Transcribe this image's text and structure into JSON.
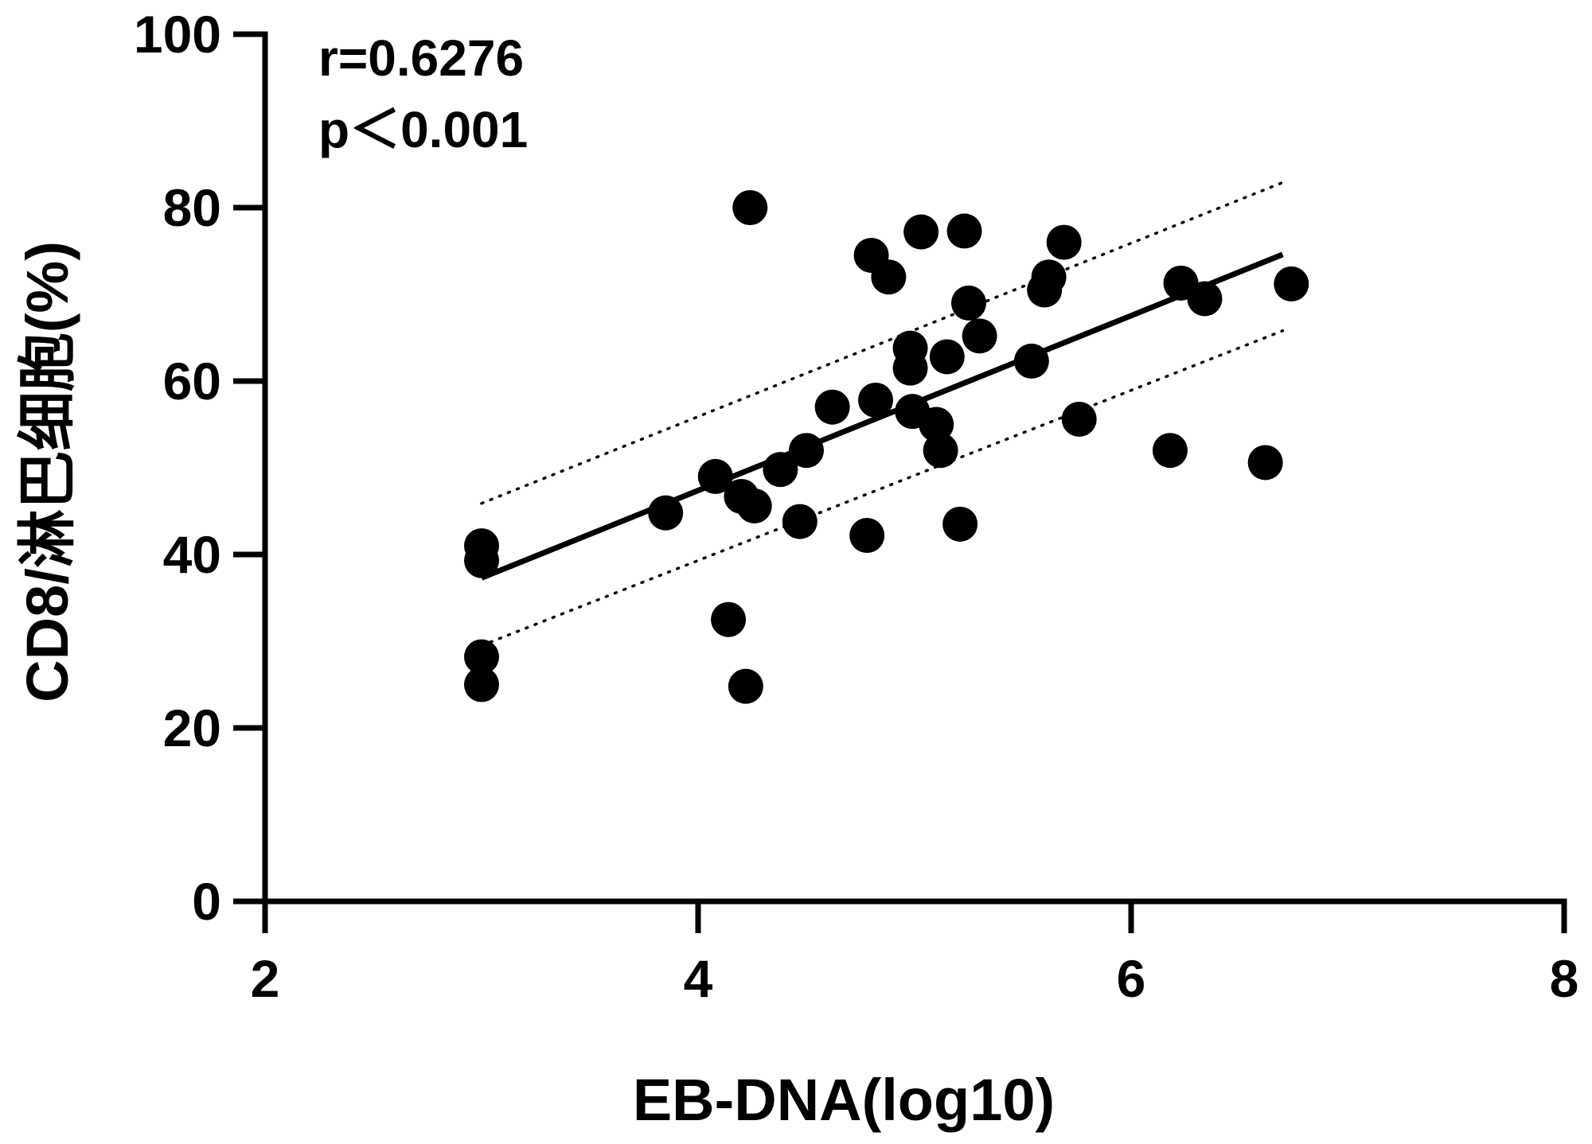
{
  "chart_data": {
    "type": "scatter",
    "title": "",
    "xlabel": "EB-DNA(log10)",
    "ylabel": "CD8/淋巴细胞(%)",
    "xlim": [
      2,
      8
    ],
    "ylim": [
      0,
      100
    ],
    "xticks": [
      "2",
      "4",
      "6",
      "8"
    ],
    "yticks": [
      "0",
      "20",
      "40",
      "60",
      "80",
      "100"
    ],
    "annotations": {
      "r": "r=0.6276",
      "p": "p＜0.001"
    },
    "points": [
      {
        "x": 3.0,
        "y": 41.0
      },
      {
        "x": 3.0,
        "y": 39.3
      },
      {
        "x": 3.0,
        "y": 28.2
      },
      {
        "x": 3.0,
        "y": 25.0
      },
      {
        "x": 3.85,
        "y": 44.8
      },
      {
        "x": 4.08,
        "y": 49.0
      },
      {
        "x": 4.14,
        "y": 32.5
      },
      {
        "x": 4.2,
        "y": 46.7
      },
      {
        "x": 4.22,
        "y": 24.8
      },
      {
        "x": 4.24,
        "y": 80.0
      },
      {
        "x": 4.26,
        "y": 45.6
      },
      {
        "x": 4.38,
        "y": 49.8
      },
      {
        "x": 4.47,
        "y": 43.8
      },
      {
        "x": 4.5,
        "y": 52.0
      },
      {
        "x": 4.62,
        "y": 57.0
      },
      {
        "x": 4.78,
        "y": 42.2
      },
      {
        "x": 4.8,
        "y": 74.5
      },
      {
        "x": 4.82,
        "y": 57.8
      },
      {
        "x": 4.88,
        "y": 72.0
      },
      {
        "x": 4.98,
        "y": 63.8
      },
      {
        "x": 4.98,
        "y": 61.5
      },
      {
        "x": 4.99,
        "y": 56.5
      },
      {
        "x": 5.03,
        "y": 77.2
      },
      {
        "x": 5.1,
        "y": 55.0
      },
      {
        "x": 5.12,
        "y": 52.0
      },
      {
        "x": 5.15,
        "y": 62.8
      },
      {
        "x": 5.21,
        "y": 43.5
      },
      {
        "x": 5.23,
        "y": 77.3
      },
      {
        "x": 5.25,
        "y": 69.0
      },
      {
        "x": 5.3,
        "y": 65.2
      },
      {
        "x": 5.54,
        "y": 62.3
      },
      {
        "x": 5.6,
        "y": 70.5
      },
      {
        "x": 5.62,
        "y": 72.0
      },
      {
        "x": 5.69,
        "y": 76.0
      },
      {
        "x": 5.76,
        "y": 55.6
      },
      {
        "x": 6.18,
        "y": 52.0
      },
      {
        "x": 6.23,
        "y": 71.3
      },
      {
        "x": 6.34,
        "y": 69.5
      },
      {
        "x": 6.62,
        "y": 50.6
      },
      {
        "x": 6.74,
        "y": 71.2
      }
    ],
    "fit_line": {
      "x": [
        3.0,
        6.7
      ],
      "y": [
        37.3,
        74.6
      ]
    },
    "ci_upper": {
      "x": [
        3.0,
        6.7
      ],
      "y": [
        45.9,
        82.9
      ]
    },
    "ci_lower": {
      "x": [
        3.0,
        6.7
      ],
      "y": [
        29.5,
        65.8
      ]
    },
    "grid": false,
    "legend": "none"
  }
}
